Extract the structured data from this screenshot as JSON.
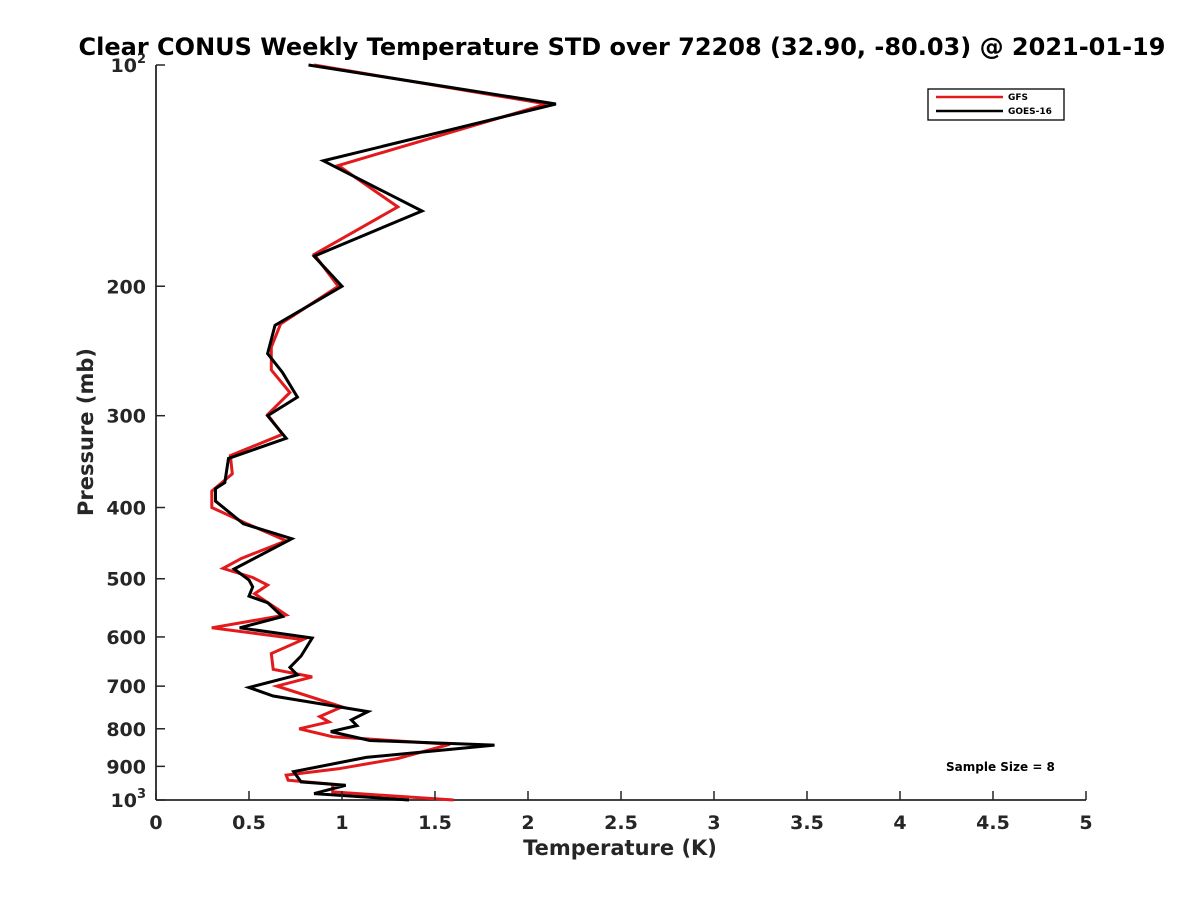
{
  "chart_data": {
    "type": "line",
    "title": "Clear CONUS Weekly Temperature STD over 72208 (32.90, -80.03) @ 2021-01-19",
    "xlabel": "Temperature (K)",
    "ylabel": "Pressure (mb)",
    "xlim": [
      0,
      5
    ],
    "ylim": [
      100,
      1000
    ],
    "y_scale": "log",
    "y_reversed": true,
    "grid": false,
    "legend_position": "top-right",
    "annotation": "Sample Size = 8",
    "x_ticks": [
      {
        "value": 0,
        "label": "0"
      },
      {
        "value": 0.5,
        "label": "0.5"
      },
      {
        "value": 1,
        "label": "1"
      },
      {
        "value": 1.5,
        "label": "1.5"
      },
      {
        "value": 2,
        "label": "2"
      },
      {
        "value": 2.5,
        "label": "2.5"
      },
      {
        "value": 3,
        "label": "3"
      },
      {
        "value": 3.5,
        "label": "3.5"
      },
      {
        "value": 4,
        "label": "4"
      },
      {
        "value": 4.5,
        "label": "4.5"
      },
      {
        "value": 5,
        "label": "5"
      }
    ],
    "y_ticks": [
      {
        "value": 100,
        "base": "10",
        "exp": "2"
      },
      {
        "value": 200,
        "base": "200",
        "exp": ""
      },
      {
        "value": 300,
        "base": "300",
        "exp": ""
      },
      {
        "value": 400,
        "base": "400",
        "exp": ""
      },
      {
        "value": 500,
        "base": "500",
        "exp": ""
      },
      {
        "value": 600,
        "base": "600",
        "exp": ""
      },
      {
        "value": 700,
        "base": "700",
        "exp": ""
      },
      {
        "value": 800,
        "base": "800",
        "exp": ""
      },
      {
        "value": 900,
        "base": "900",
        "exp": ""
      },
      {
        "value": 1000,
        "base": "10",
        "exp": "3"
      }
    ],
    "series": [
      {
        "name": "GFS",
        "color": "#e31a1c",
        "points": [
          {
            "x": 0.85,
            "y": 100
          },
          {
            "x": 2.1,
            "y": 113
          },
          {
            "x": 0.98,
            "y": 137
          },
          {
            "x": 1.3,
            "y": 156
          },
          {
            "x": 0.85,
            "y": 181
          },
          {
            "x": 0.98,
            "y": 200
          },
          {
            "x": 0.67,
            "y": 225
          },
          {
            "x": 0.62,
            "y": 242
          },
          {
            "x": 0.62,
            "y": 260
          },
          {
            "x": 0.72,
            "y": 279
          },
          {
            "x": 0.6,
            "y": 299
          },
          {
            "x": 0.68,
            "y": 318
          },
          {
            "x": 0.4,
            "y": 340
          },
          {
            "x": 0.41,
            "y": 360
          },
          {
            "x": 0.3,
            "y": 380
          },
          {
            "x": 0.3,
            "y": 400
          },
          {
            "x": 0.49,
            "y": 421
          },
          {
            "x": 0.7,
            "y": 444
          },
          {
            "x": 0.46,
            "y": 469
          },
          {
            "x": 0.36,
            "y": 484
          },
          {
            "x": 0.52,
            "y": 498
          },
          {
            "x": 0.6,
            "y": 510
          },
          {
            "x": 0.53,
            "y": 524
          },
          {
            "x": 0.7,
            "y": 560
          },
          {
            "x": 0.3,
            "y": 583
          },
          {
            "x": 0.79,
            "y": 605
          },
          {
            "x": 0.62,
            "y": 632
          },
          {
            "x": 0.63,
            "y": 664
          },
          {
            "x": 0.84,
            "y": 680
          },
          {
            "x": 0.65,
            "y": 700
          },
          {
            "x": 1.0,
            "y": 747
          },
          {
            "x": 0.88,
            "y": 770
          },
          {
            "x": 0.93,
            "y": 783
          },
          {
            "x": 0.77,
            "y": 800
          },
          {
            "x": 0.95,
            "y": 820
          },
          {
            "x": 1.58,
            "y": 840
          },
          {
            "x": 1.3,
            "y": 878
          },
          {
            "x": 0.98,
            "y": 907
          },
          {
            "x": 0.7,
            "y": 925
          },
          {
            "x": 0.71,
            "y": 940
          },
          {
            "x": 0.95,
            "y": 952
          },
          {
            "x": 0.95,
            "y": 975
          },
          {
            "x": 1.6,
            "y": 1000
          }
        ]
      },
      {
        "name": "GOES-16",
        "color": "#000000",
        "points": [
          {
            "x": 0.82,
            "y": 100
          },
          {
            "x": 2.15,
            "y": 113
          },
          {
            "x": 0.9,
            "y": 135
          },
          {
            "x": 1.43,
            "y": 158
          },
          {
            "x": 0.85,
            "y": 182
          },
          {
            "x": 1.0,
            "y": 200
          },
          {
            "x": 0.64,
            "y": 226
          },
          {
            "x": 0.6,
            "y": 247
          },
          {
            "x": 0.68,
            "y": 262
          },
          {
            "x": 0.76,
            "y": 283
          },
          {
            "x": 0.6,
            "y": 300
          },
          {
            "x": 0.7,
            "y": 322
          },
          {
            "x": 0.39,
            "y": 343
          },
          {
            "x": 0.37,
            "y": 370
          },
          {
            "x": 0.32,
            "y": 377
          },
          {
            "x": 0.32,
            "y": 392
          },
          {
            "x": 0.47,
            "y": 421
          },
          {
            "x": 0.73,
            "y": 441
          },
          {
            "x": 0.42,
            "y": 485
          },
          {
            "x": 0.5,
            "y": 502
          },
          {
            "x": 0.52,
            "y": 513
          },
          {
            "x": 0.5,
            "y": 528
          },
          {
            "x": 0.6,
            "y": 539
          },
          {
            "x": 0.68,
            "y": 563
          },
          {
            "x": 0.45,
            "y": 583
          },
          {
            "x": 0.84,
            "y": 602
          },
          {
            "x": 0.78,
            "y": 637
          },
          {
            "x": 0.72,
            "y": 660
          },
          {
            "x": 0.76,
            "y": 676
          },
          {
            "x": 0.5,
            "y": 703
          },
          {
            "x": 0.63,
            "y": 722
          },
          {
            "x": 1.14,
            "y": 758
          },
          {
            "x": 1.05,
            "y": 778
          },
          {
            "x": 1.08,
            "y": 792
          },
          {
            "x": 0.94,
            "y": 807
          },
          {
            "x": 1.15,
            "y": 830
          },
          {
            "x": 1.82,
            "y": 842
          },
          {
            "x": 1.13,
            "y": 875
          },
          {
            "x": 0.74,
            "y": 915
          },
          {
            "x": 0.78,
            "y": 945
          },
          {
            "x": 1.02,
            "y": 955
          },
          {
            "x": 0.85,
            "y": 980
          },
          {
            "x": 1.36,
            "y": 1000
          }
        ]
      }
    ]
  }
}
